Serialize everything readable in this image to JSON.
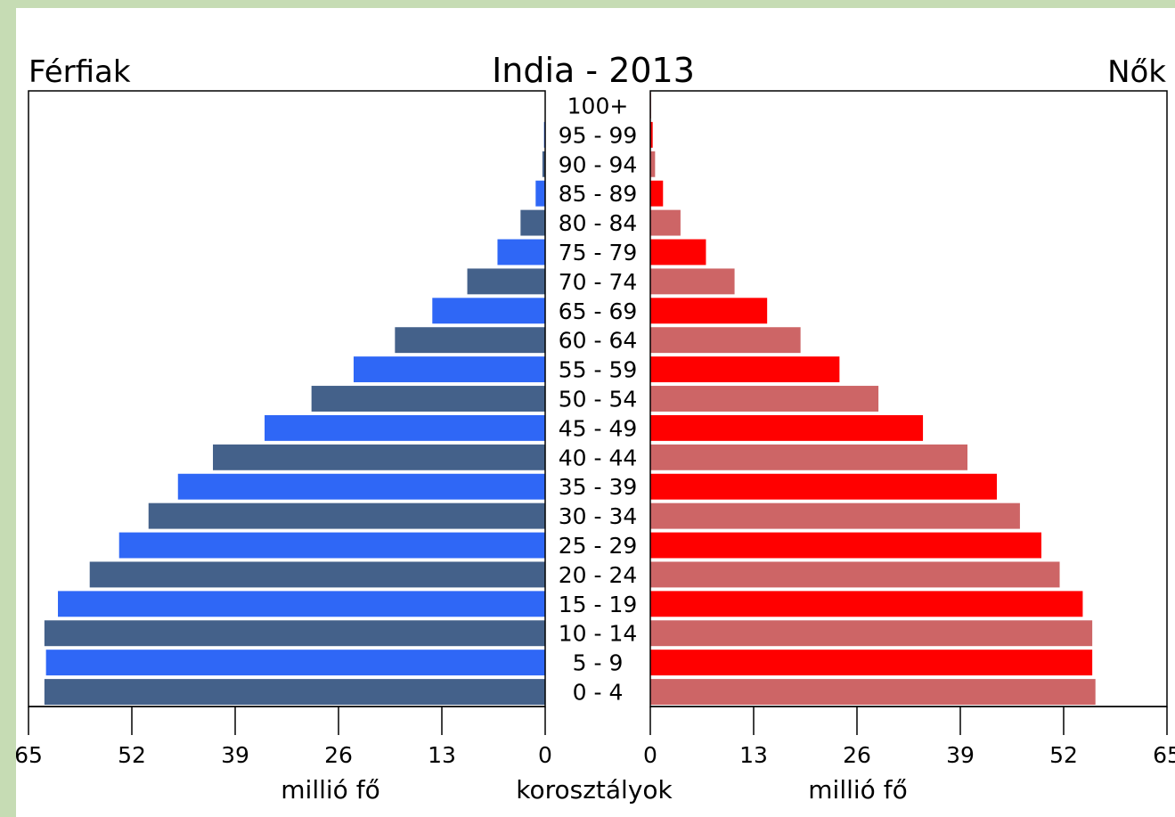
{
  "chart_data": {
    "type": "bar",
    "title": "India - 2013",
    "left_label": "Férfiak",
    "right_label": "Nők",
    "xlabel_left": "millió fő",
    "xlabel_center": "korosztályok",
    "xlabel_right": "millió fő",
    "xlim": [
      0,
      65
    ],
    "ticks": [
      "65",
      "52",
      "39",
      "26",
      "13",
      "0"
    ],
    "ticks_right": [
      "0",
      "13",
      "26",
      "39",
      "52",
      "65"
    ],
    "categories": [
      "0 - 4",
      "5 - 9",
      "10 - 14",
      "15 - 19",
      "20 - 24",
      "25 - 29",
      "30 - 34",
      "35 - 39",
      "40 - 44",
      "45 - 49",
      "50 - 54",
      "55 - 59",
      "60 - 64",
      "65 - 69",
      "70 - 74",
      "75 - 79",
      "80 - 84",
      "85 - 89",
      "90 - 94",
      "95 - 99",
      "100+"
    ],
    "series": [
      {
        "name": "Férfiak",
        "values": [
          63,
          62.8,
          63,
          61.3,
          57.3,
          53.6,
          49.9,
          46.2,
          41.8,
          35.3,
          29.4,
          24.1,
          18.9,
          14.2,
          9.8,
          6.0,
          3.1,
          1.2,
          0.35,
          0.15,
          0.05
        ]
      },
      {
        "name": "Nők",
        "values": [
          56.0,
          55.6,
          55.6,
          54.4,
          51.5,
          49.2,
          46.5,
          43.6,
          39.9,
          34.3,
          28.7,
          23.8,
          18.9,
          14.7,
          10.6,
          7.0,
          3.8,
          1.6,
          0.6,
          0.3,
          0.1
        ]
      }
    ],
    "colors": {
      "male_dark": "#44618a",
      "male_light": "#2f67f6",
      "female_dark": "#cd6566",
      "female_light": "#ff0000"
    }
  }
}
